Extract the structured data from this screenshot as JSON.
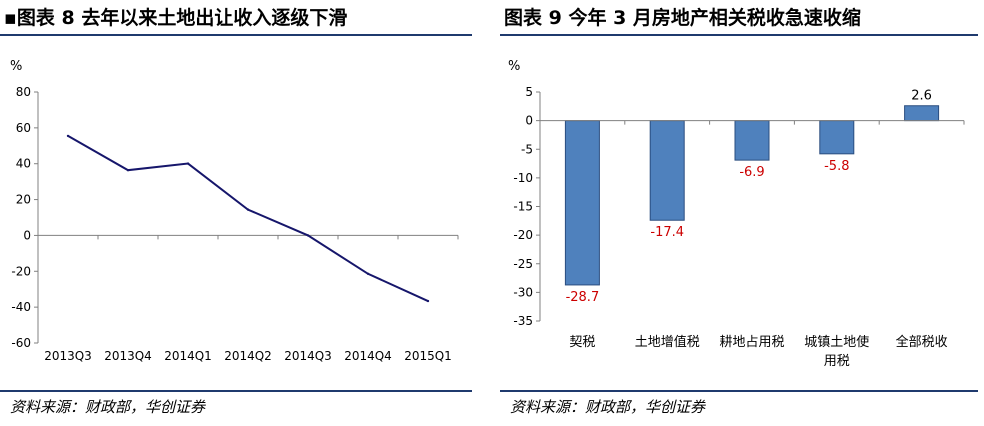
{
  "colors": {
    "accent": "#1f3a6e",
    "line": "#16166b",
    "bar_fill": "#4f81bd",
    "bar_stroke": "#2a4d7f",
    "neg_label": "#cc0000"
  },
  "left": {
    "title": "图表 8  去年以来土地出让收入逐级下滑",
    "title_marker": "▪",
    "return_mark": "↵",
    "source": "资料来源：财政部，华创证券",
    "chart_data": {
      "type": "line",
      "title": "",
      "ylabel": "%",
      "xlabel": "",
      "ylim": [
        -60,
        80
      ],
      "yticks": [
        80,
        60,
        40,
        20,
        0,
        -20,
        -40,
        -60
      ],
      "categories": [
        "2013Q3",
        "2013Q4",
        "2014Q1",
        "2014Q2",
        "2014Q3",
        "2014Q4",
        "2015Q1"
      ],
      "series": [
        {
          "values": [
            55.5,
            36.4,
            40.1,
            14.4,
            0.0,
            -21.4,
            -36.6
          ]
        }
      ],
      "grid": false,
      "legend": "none"
    }
  },
  "right": {
    "title": "图表 9  今年 3 月房地产相关税收急速收缩",
    "return_mark": "↵",
    "source": "资料来源：财政部，华创证券",
    "chart_data": {
      "type": "bar",
      "title": "",
      "ylabel": "%",
      "xlabel": "",
      "ylim": [
        -35,
        5
      ],
      "yticks": [
        5,
        0,
        -5,
        -10,
        -15,
        -20,
        -25,
        -30,
        -35
      ],
      "categories": [
        [
          "契税"
        ],
        [
          "土地增值税"
        ],
        [
          "耕地占用税"
        ],
        [
          "城镇土地使",
          "用税"
        ],
        [
          "全部税收"
        ]
      ],
      "values": [
        -28.7,
        -17.4,
        -6.9,
        -5.8,
        2.6
      ],
      "labels": [
        "-28.7",
        "-17.4",
        "-6.9",
        "-5.8",
        "2.6"
      ],
      "grid": false,
      "legend": "none"
    }
  }
}
